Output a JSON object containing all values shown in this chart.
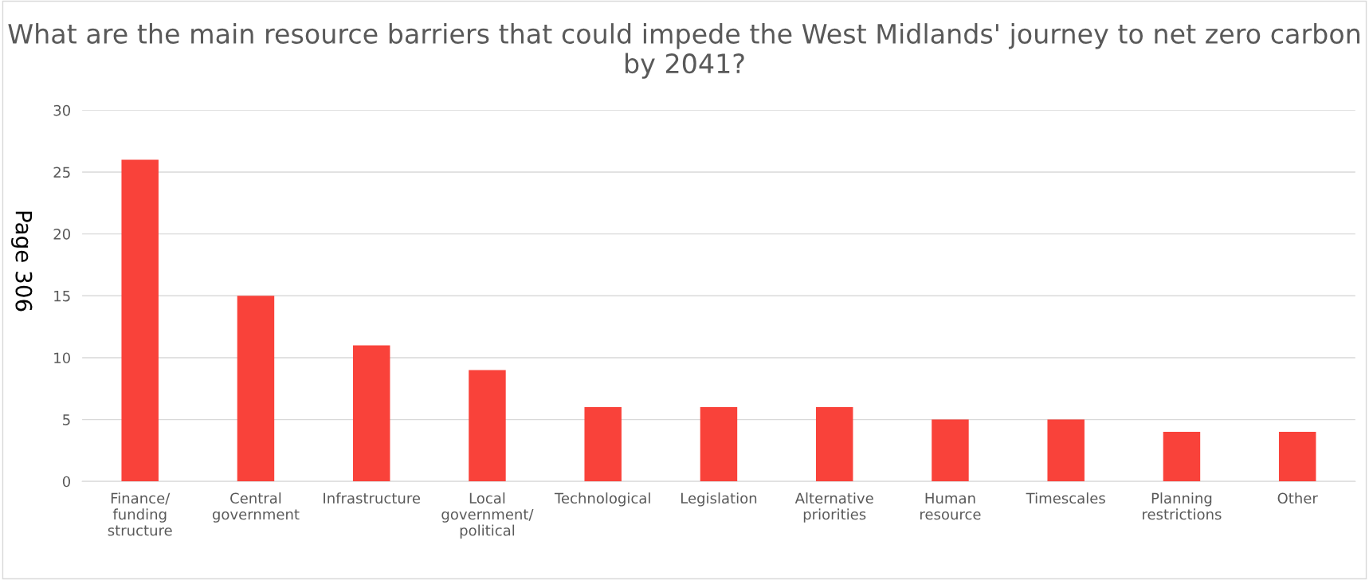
{
  "chart_data": {
    "type": "bar",
    "title": "What are the main resource barriers that could impede the West Midlands' journey to net zero carbon by 2041?",
    "categories": [
      "Finance/ funding structure",
      "Central government",
      "Infrastructure",
      "Local government/ political",
      "Technological",
      "Legislation",
      "Alternative priorities",
      "Human resource",
      "Timescales",
      "Planning restrictions",
      "Other"
    ],
    "values": [
      26,
      15,
      11,
      9,
      6,
      6,
      6,
      5,
      5,
      4,
      4
    ],
    "color": "#f9423a",
    "ylim": [
      0,
      30
    ],
    "yticks": [
      0,
      5,
      10,
      15,
      20,
      25,
      30
    ],
    "grid": "y",
    "annotations": [
      "Page 306"
    ]
  }
}
